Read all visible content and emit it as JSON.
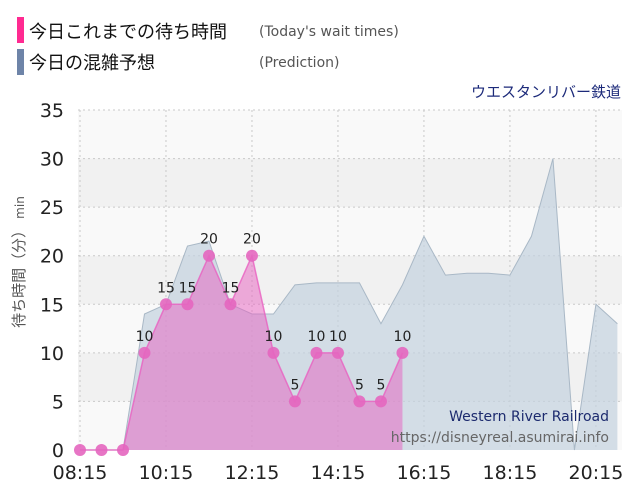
{
  "chart_data": {
    "type": "area",
    "title": "ウエスタンリバー鉄道",
    "ylabel": "待ち時間（分）",
    "ylabel_unit": "min",
    "ylim": [
      0,
      35
    ],
    "yticks": [
      0,
      5,
      10,
      15,
      20,
      25,
      30,
      35
    ],
    "xlim": [
      "08:15",
      "20:50"
    ],
    "xticks": [
      "08:15",
      "10:15",
      "12:15",
      "14:15",
      "16:15",
      "18:15",
      "20:15"
    ],
    "grid": true,
    "legend": "top-left",
    "series": [
      {
        "name": "今日これまでの待ち時間",
        "name_en": "(Today's wait times)",
        "color": "#ff2a91",
        "fill": "#e860c0",
        "point": "#e466bf",
        "x": [
          "08:15",
          "08:45",
          "09:15",
          "09:45",
          "10:15",
          "10:45",
          "11:15",
          "11:45",
          "12:15",
          "12:45",
          "13:15",
          "13:45",
          "14:15",
          "14:45",
          "15:15",
          "15:45"
        ],
        "values": [
          0,
          0,
          0,
          10,
          15,
          15,
          20,
          15,
          20,
          10,
          5,
          10,
          10,
          5,
          5,
          10
        ]
      },
      {
        "name": "今日の混雑予想",
        "name_en": "(Prediction)",
        "color": "#6e84a8",
        "fill": "#c3d1de",
        "stroke": "#a9b8c6",
        "x": [
          "08:15",
          "08:45",
          "09:15",
          "09:45",
          "10:15",
          "10:45",
          "11:15",
          "11:45",
          "12:15",
          "12:45",
          "13:15",
          "13:45",
          "14:15",
          "14:45",
          "15:15",
          "15:45",
          "16:15",
          "16:45",
          "17:15",
          "17:45",
          "18:15",
          "18:45",
          "19:15",
          "19:45",
          "20:15",
          "20:45"
        ],
        "values": [
          0,
          0,
          0,
          14,
          15,
          21,
          21.5,
          15,
          14,
          14,
          17,
          17.2,
          17.2,
          17.2,
          13,
          17,
          22,
          18,
          18.2,
          18.2,
          18,
          22,
          30,
          0,
          15,
          13
        ]
      }
    ],
    "annotations": [
      "Western River Railroad",
      "https://disneyreal.asumirai.info"
    ]
  }
}
